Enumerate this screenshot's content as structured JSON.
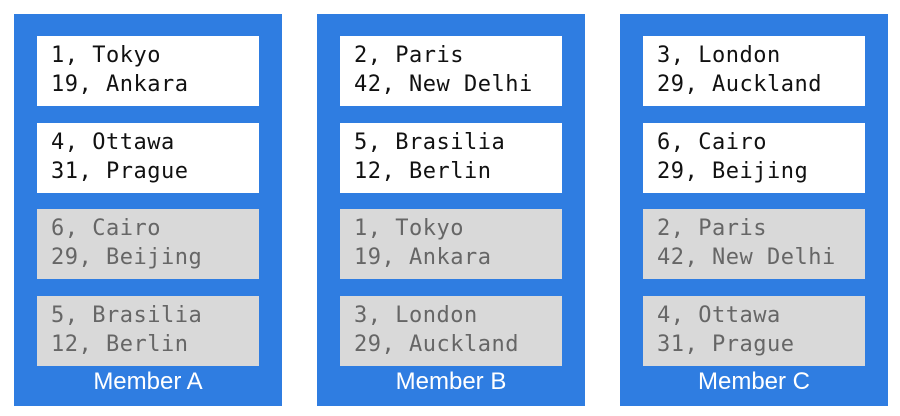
{
  "colors": {
    "member_bg": "#2f7de1",
    "primary_box": "#ffffff",
    "replica_box": "#d9d9d9",
    "replica_text": "#666666"
  },
  "members": [
    {
      "label": "Member A",
      "boxes": [
        {
          "kind": "primary",
          "lines": [
            "1, Tokyo",
            "19, Ankara"
          ]
        },
        {
          "kind": "primary",
          "lines": [
            "4, Ottawa",
            "31, Prague"
          ]
        },
        {
          "kind": "replica",
          "lines": [
            "6, Cairo",
            "29, Beijing"
          ]
        },
        {
          "kind": "replica",
          "lines": [
            "5, Brasilia",
            "12, Berlin"
          ]
        }
      ]
    },
    {
      "label": "Member B",
      "boxes": [
        {
          "kind": "primary",
          "lines": [
            "2, Paris",
            "42, New Delhi"
          ]
        },
        {
          "kind": "primary",
          "lines": [
            "5, Brasilia",
            "12, Berlin"
          ]
        },
        {
          "kind": "replica",
          "lines": [
            "1, Tokyo",
            "19, Ankara"
          ]
        },
        {
          "kind": "replica",
          "lines": [
            "3, London",
            "29, Auckland"
          ]
        }
      ]
    },
    {
      "label": "Member C",
      "boxes": [
        {
          "kind": "primary",
          "lines": [
            "3, London",
            "29, Auckland"
          ]
        },
        {
          "kind": "primary",
          "lines": [
            "6, Cairo",
            "29, Beijing"
          ]
        },
        {
          "kind": "replica",
          "lines": [
            "2, Paris",
            "42, New Delhi"
          ]
        },
        {
          "kind": "replica",
          "lines": [
            "4, Ottawa",
            "31, Prague"
          ]
        }
      ]
    }
  ]
}
